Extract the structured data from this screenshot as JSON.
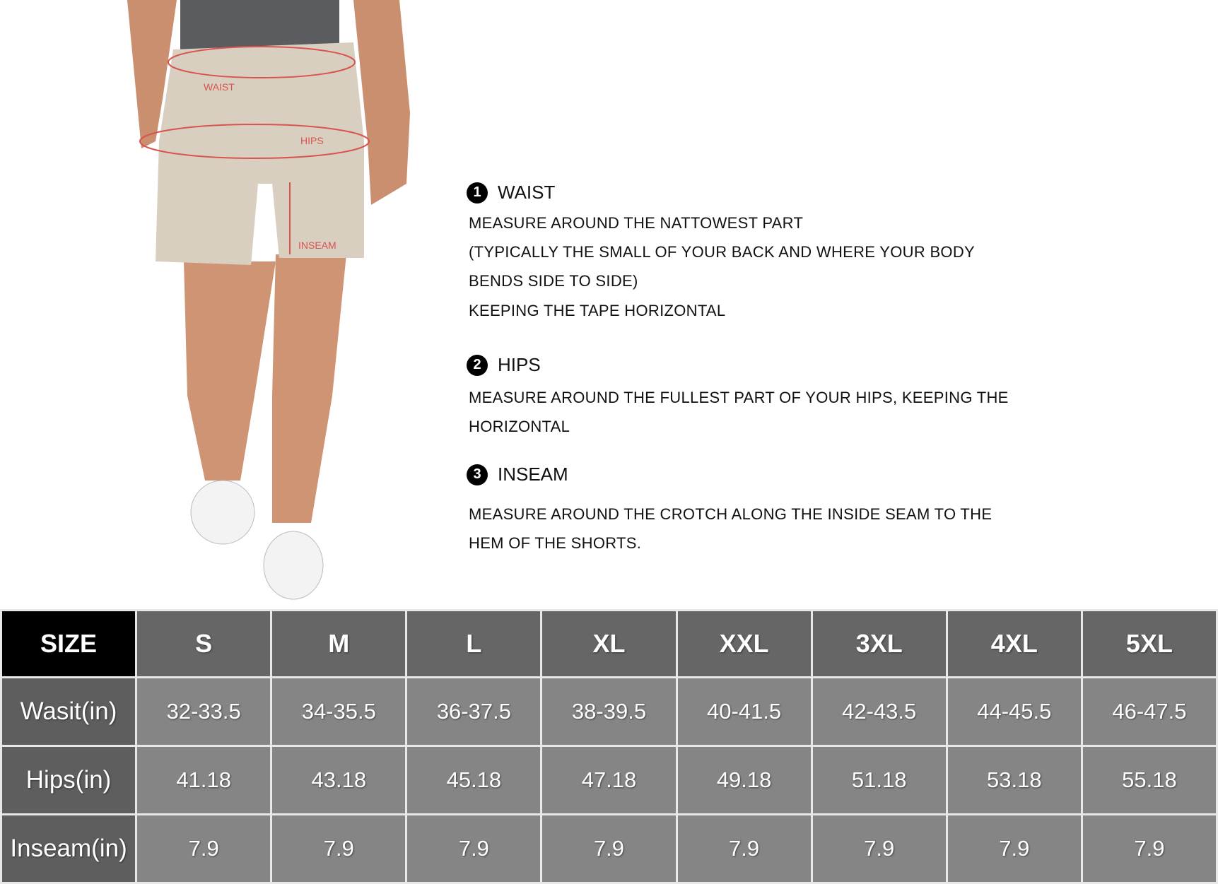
{
  "figure": {
    "labels": {
      "waist": "WAIST",
      "hips": "HIPS",
      "inseam": "INSEAM"
    },
    "measure_line_color": "#d9534f"
  },
  "instructions": [
    {
      "number": "1",
      "title": "WAIST",
      "lines": [
        "MEASURE AROUND THE NATTOWEST PART",
        "(TYPICALLY THE SMALL OF YOUR BACK AND WHERE YOUR BODY",
        "BENDS SIDE TO SIDE)",
        "KEEPING THE TAPE HORIZONTAL"
      ]
    },
    {
      "number": "2",
      "title": "HIPS",
      "lines": [
        "MEASURE AROUND THE FULLEST PART OF YOUR HIPS, KEEPING THE",
        "HORIZONTAL"
      ]
    },
    {
      "number": "3",
      "title": "INSEAM",
      "lines": [
        "MEASURE AROUND THE CROTCH ALONG THE INSIDE SEAM TO THE",
        "HEM OF THE SHORTS."
      ]
    }
  ],
  "size_table": {
    "header": [
      "SIZE",
      "S",
      "M",
      "L",
      "XL",
      "XXL",
      "3XL",
      "4XL",
      "5XL"
    ],
    "rows": [
      {
        "label": "Wasit(in)",
        "values": [
          "32-33.5",
          "34-35.5",
          "36-37.5",
          "38-39.5",
          "40-41.5",
          "42-43.5",
          "44-45.5",
          "46-47.5"
        ]
      },
      {
        "label": "Hips(in)",
        "values": [
          "41.18",
          "43.18",
          "45.18",
          "47.18",
          "49.18",
          "51.18",
          "53.18",
          "55.18"
        ]
      },
      {
        "label": "Inseam(in)",
        "values": [
          "7.9",
          "7.9",
          "7.9",
          "7.9",
          "7.9",
          "7.9",
          "7.9",
          "7.9"
        ]
      }
    ]
  }
}
